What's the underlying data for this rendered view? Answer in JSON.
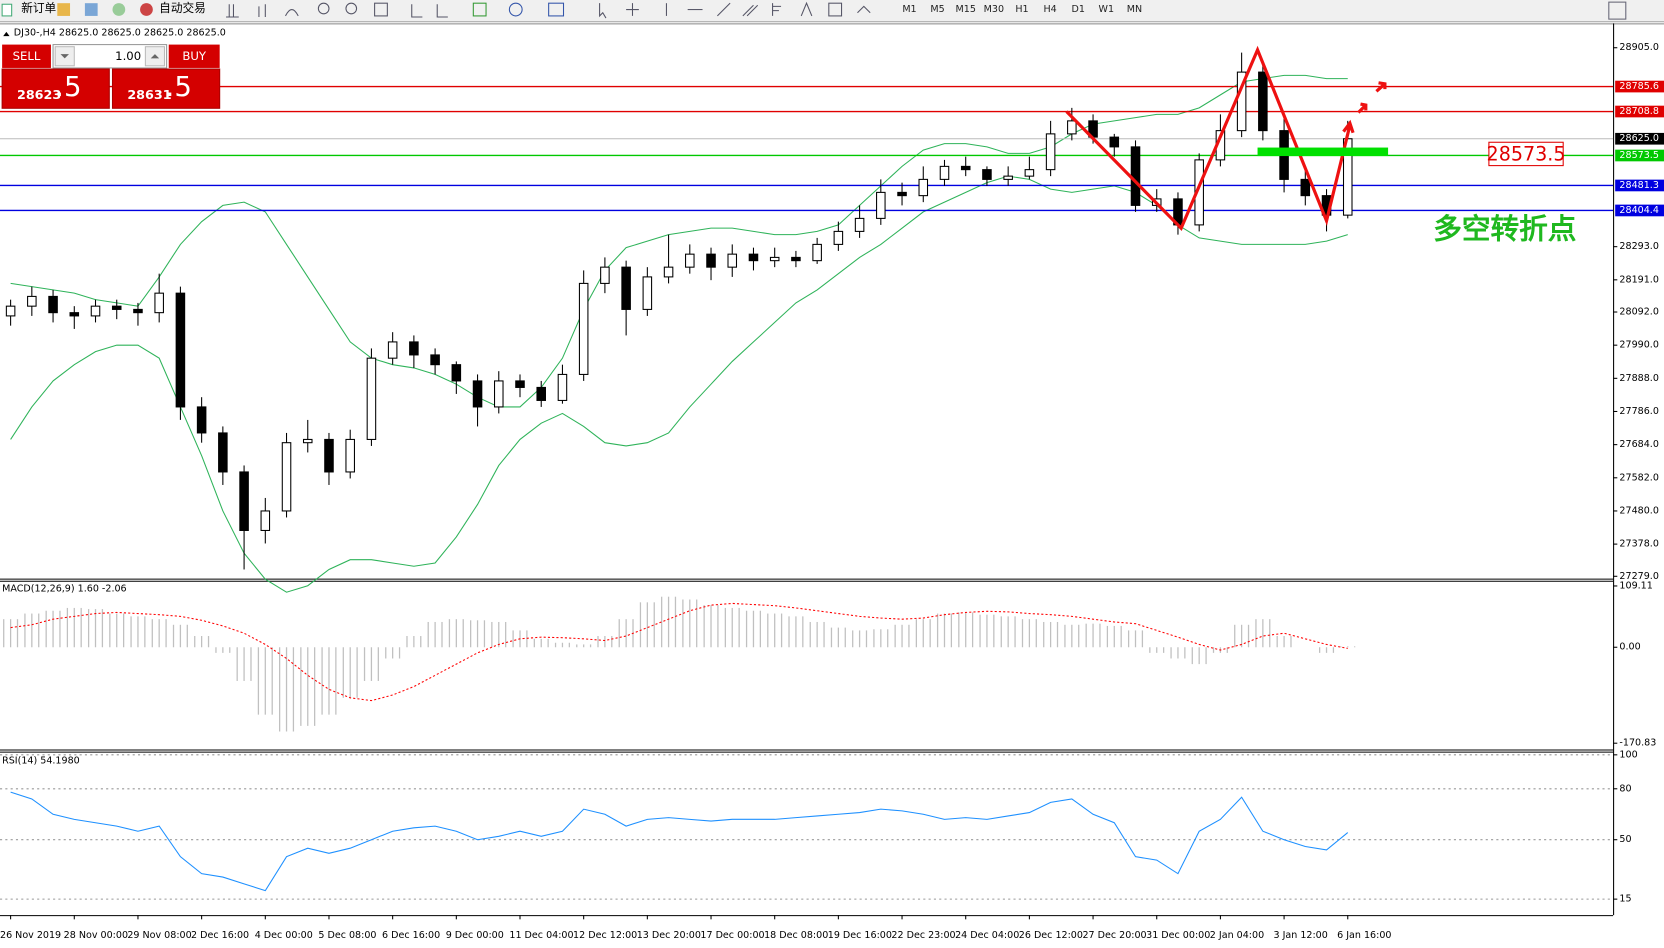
{
  "toolbar": {
    "new_order": "新订单",
    "auto_trading": "自动交易",
    "timeframes": [
      "M1",
      "M5",
      "M15",
      "M30",
      "H1",
      "H4",
      "D1",
      "W1",
      "MN"
    ]
  },
  "trade_panel": {
    "sell": "SELL",
    "buy": "BUY",
    "lots": "1.00",
    "bid_main": "28623",
    "bid_pips": ".5",
    "ask_main": "28631",
    "ask_pips": ".5"
  },
  "chart_data": [
    {
      "type": "candlestick",
      "title": "DJ30-,H4 28625.0 28625.0 28625.0 28625.0",
      "categories": [
        "26 Nov 2019",
        null,
        null,
        "28 Nov 00:00",
        null,
        null,
        "29 Nov 08:00",
        null,
        null,
        "2 Dec 16:00",
        null,
        null,
        "4 Dec 00:00",
        null,
        null,
        "5 Dec 08:00",
        null,
        null,
        "6 Dec 16:00",
        null,
        null,
        "9 Dec 00:00",
        null,
        null,
        "11 Dec 04:00",
        null,
        null,
        "12 Dec 12:00",
        null,
        null,
        "13 Dec 20:00",
        null,
        null,
        "17 Dec 00:00",
        null,
        null,
        "18 Dec 08:00",
        null,
        null,
        "19 Dec 16:00",
        null,
        null,
        "22 Dec 23:00",
        null,
        null,
        "24 Dec 04:00",
        null,
        null,
        "26 Dec 12:00",
        null,
        null,
        "27 Dec 20:00",
        null,
        null,
        "31 Dec 00:00",
        null,
        null,
        "2 Jan 04:00",
        null,
        null,
        "3 Jan 12:00",
        null,
        null,
        "6 Jan 16:00"
      ],
      "open": [
        28080,
        28110,
        28140,
        28090,
        28080,
        28110,
        28100,
        28090,
        28150,
        27800,
        27720,
        27600,
        27420,
        27480,
        27690,
        27700,
        27600,
        27700,
        27950,
        28000,
        27960,
        27930,
        27880,
        27800,
        27880,
        27860,
        27820,
        27900,
        28180,
        28230,
        28100,
        28200,
        28230,
        28270,
        28230,
        28270,
        28250,
        28260,
        28250,
        28300,
        28340,
        28380,
        28460,
        28450,
        28500,
        28540,
        28530,
        28500,
        28510,
        28530,
        28640,
        28680,
        28630,
        28600,
        28420,
        28440,
        28360,
        28560,
        28650,
        28830,
        28650,
        28500,
        28450,
        28390
      ],
      "high": [
        28130,
        28170,
        28160,
        28110,
        28130,
        28130,
        28120,
        28210,
        28170,
        27830,
        27740,
        27620,
        27520,
        27720,
        27760,
        27720,
        27730,
        27980,
        28030,
        28020,
        27980,
        27940,
        27900,
        27910,
        27900,
        27880,
        27930,
        28220,
        28260,
        28250,
        28230,
        28330,
        28300,
        28290,
        28300,
        28290,
        28290,
        28280,
        28320,
        28370,
        28420,
        28500,
        28490,
        28540,
        28560,
        28570,
        28540,
        28540,
        28570,
        28680,
        28720,
        28700,
        28640,
        28620,
        28470,
        28460,
        28580,
        28700,
        28890,
        28860,
        28690,
        28530,
        28470,
        28680
      ],
      "low": [
        28050,
        28080,
        28060,
        28040,
        28060,
        28070,
        28050,
        28060,
        27760,
        27690,
        27560,
        27300,
        27380,
        27460,
        27660,
        27560,
        27580,
        27680,
        27930,
        27920,
        27900,
        27840,
        27740,
        27780,
        27830,
        27800,
        27810,
        27880,
        28150,
        28020,
        28080,
        28180,
        28210,
        28190,
        28200,
        28220,
        28230,
        28230,
        28240,
        28280,
        28320,
        28360,
        28420,
        28430,
        28480,
        28510,
        28480,
        28480,
        28500,
        28510,
        28620,
        28610,
        28570,
        28400,
        28400,
        28330,
        28340,
        28540,
        28630,
        28620,
        28460,
        28420,
        28340,
        28380
      ],
      "close": [
        28110,
        28140,
        28090,
        28080,
        28110,
        28100,
        28090,
        28150,
        27800,
        27720,
        27600,
        27420,
        27480,
        27690,
        27700,
        27600,
        27700,
        27950,
        28000,
        27960,
        27930,
        27880,
        27800,
        27880,
        27860,
        27820,
        27900,
        28180,
        28230,
        28100,
        28200,
        28230,
        28270,
        28230,
        28270,
        28250,
        28260,
        28250,
        28300,
        28340,
        28380,
        28460,
        28450,
        28500,
        28540,
        28530,
        28500,
        28510,
        28530,
        28640,
        28680,
        28630,
        28600,
        28420,
        28440,
        28360,
        28560,
        28650,
        28830,
        28650,
        28500,
        28450,
        28390,
        28625
      ],
      "up_color": "#ffffff",
      "down_color": "#000000",
      "bands": [
        {
          "color": "#2fb35a",
          "values": [
            28180,
            28170,
            28160,
            28150,
            28130,
            28120,
            28110,
            28200,
            28300,
            28370,
            28420,
            28430,
            28400,
            28300,
            28200,
            28100,
            28000,
            27950,
            27930,
            27920,
            27900,
            27870,
            27830,
            27800,
            27800,
            27860,
            27950,
            28100,
            28220,
            28290,
            28310,
            28330,
            28340,
            28350,
            28350,
            28340,
            28330,
            28330,
            28340,
            28360,
            28420,
            28480,
            28540,
            28590,
            28610,
            28610,
            28600,
            28580,
            28580,
            28600,
            28640,
            28670,
            28680,
            28690,
            28700,
            28700,
            28720,
            28760,
            28800,
            28810,
            28820,
            28820,
            28810,
            28810
          ]
        },
        {
          "color": "#2fb35a",
          "values": [
            27700,
            27800,
            27880,
            27930,
            27970,
            27990,
            27990,
            27950,
            27800,
            27650,
            27480,
            27350,
            27270,
            27230,
            27250,
            27300,
            27330,
            27330,
            27320,
            27310,
            27320,
            27400,
            27500,
            27620,
            27700,
            27750,
            27780,
            27740,
            27690,
            27680,
            27690,
            27720,
            27800,
            27870,
            27940,
            28000,
            28060,
            28120,
            28160,
            28210,
            28260,
            28300,
            28350,
            28400,
            28430,
            28460,
            28490,
            28510,
            28500,
            28470,
            28460,
            28470,
            28480,
            28460,
            28420,
            28360,
            28320,
            28310,
            28300,
            28300,
            28300,
            28300,
            28310,
            28330
          ]
        }
      ],
      "hlines": [
        {
          "value": 28785.6,
          "color": "#e00000"
        },
        {
          "value": 28708.8,
          "color": "#e00000"
        },
        {
          "value": 28573.5,
          "color": "#00c800"
        },
        {
          "value": 28481.3,
          "color": "#0000e0"
        },
        {
          "value": 28404.4,
          "color": "#0000e0"
        }
      ],
      "last_price": {
        "value": 28625,
        "label": "28625.0"
      },
      "annotation": "多空转折点",
      "ylim": [
        27272,
        28980
      ],
      "yticks": [
        {
          "value": 28905,
          "label": "28905.0"
        },
        {
          "value": 28293,
          "label": "28293.0"
        },
        {
          "value": 28191,
          "label": "28191.0"
        },
        {
          "value": 28092,
          "label": "28092.0"
        },
        {
          "value": 27990,
          "label": "27990.0"
        },
        {
          "value": 27888,
          "label": "27888.0"
        },
        {
          "value": 27786,
          "label": "27786.0"
        },
        {
          "value": 27684,
          "label": "27684.0"
        },
        {
          "value": 27582,
          "label": "27582.0"
        },
        {
          "value": 27480,
          "label": "27480.0"
        },
        {
          "value": 27378,
          "label": "27378.0"
        },
        {
          "value": 27279,
          "label": "27279.0"
        }
      ]
    },
    {
      "type": "macd",
      "title": "MACD(12,26,9) 1.60 -2.06",
      "histogram": [
        50,
        60,
        65,
        70,
        68,
        60,
        55,
        50,
        40,
        20,
        -10,
        -60,
        -120,
        -150,
        -140,
        -120,
        -90,
        -60,
        -20,
        20,
        45,
        50,
        48,
        45,
        30,
        15,
        8,
        5,
        20,
        50,
        80,
        90,
        85,
        75,
        70,
        65,
        60,
        55,
        45,
        35,
        30,
        32,
        40,
        50,
        60,
        62,
        58,
        55,
        50,
        45,
        40,
        42,
        38,
        30,
        -10,
        -20,
        -30,
        -10,
        40,
        50,
        20,
        0,
        -10,
        1.6
      ],
      "signal": [
        35,
        40,
        50,
        55,
        60,
        62,
        60,
        58,
        55,
        48,
        38,
        25,
        5,
        -20,
        -50,
        -75,
        -90,
        -95,
        -85,
        -70,
        -50,
        -30,
        -10,
        5,
        15,
        18,
        17,
        15,
        12,
        20,
        35,
        50,
        65,
        75,
        78,
        76,
        74,
        70,
        65,
        60,
        55,
        52,
        50,
        52,
        58,
        62,
        64,
        63,
        60,
        58,
        55,
        50,
        45,
        42,
        30,
        18,
        5,
        -5,
        5,
        20,
        25,
        15,
        5,
        -2.06
      ],
      "histogram_color": "#c0c0c0",
      "signal_color": "#ff0000",
      "ylim": [
        -182,
        118.5
      ],
      "yticks": [
        109.11,
        {
          "value": 0,
          "label": "0.00"
        },
        -170.83
      ]
    },
    {
      "type": "line",
      "title": "RSI(14) 54.1980",
      "values": [
        78,
        74,
        65,
        62,
        60,
        58,
        55,
        58,
        40,
        30,
        28,
        24,
        20,
        40,
        45,
        42,
        45,
        50,
        55,
        57,
        58,
        55,
        50,
        52,
        55,
        52,
        55,
        68,
        65,
        58,
        62,
        63,
        62,
        61,
        62,
        62,
        62,
        63,
        64,
        65,
        66,
        68,
        67,
        65,
        62,
        63,
        62,
        64,
        66,
        72,
        74,
        65,
        60,
        40,
        38,
        30,
        55,
        62,
        75,
        55,
        50,
        46,
        44,
        54.198
      ],
      "color": "#1e90ff",
      "ylim": [
        5.6,
        101.9
      ],
      "yticks": [
        100,
        80,
        50,
        15
      ],
      "grid": true
    }
  ]
}
